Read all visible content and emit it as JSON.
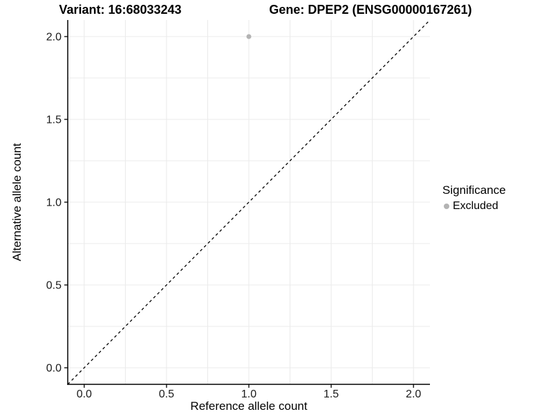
{
  "titles": {
    "variant": "Variant: 16:68033243",
    "gene": "Gene: DPEP2 (ENSG00000167261)"
  },
  "chart_data": {
    "type": "scatter",
    "title_left": "Variant: 16:68033243",
    "title_right": "Gene: DPEP2 (ENSG00000167261)",
    "xlabel": "Reference allele count",
    "ylabel": "Alternative allele count",
    "xlim": [
      -0.1,
      2.1
    ],
    "ylim": [
      -0.1,
      2.1
    ],
    "x_ticks": [
      0.0,
      0.5,
      1.0,
      1.5,
      2.0
    ],
    "y_ticks": [
      0.0,
      0.5,
      1.0,
      1.5,
      2.0
    ],
    "x_tick_labels": [
      "0.0",
      "0.5",
      "1.0",
      "1.5",
      "2.0"
    ],
    "y_tick_labels": [
      "0.0",
      "0.5",
      "1.0",
      "1.5",
      "2.0"
    ],
    "grid_on": true,
    "grid_interval": 0.25,
    "grid_range": [
      0.0,
      2.0
    ],
    "series": [
      {
        "name": "Excluded",
        "points": [
          {
            "x": 1.0,
            "y": 2.0
          }
        ],
        "color": "#b3b3b3",
        "point_radius": 3.5
      }
    ],
    "reference_line": {
      "description": "identity line y = x",
      "from": [
        -0.1,
        -0.1
      ],
      "to": [
        2.1,
        2.1
      ],
      "style": "dashed",
      "color": "#000000"
    },
    "legend": {
      "title": "Significance",
      "position": "right",
      "items": [
        {
          "label": "Excluded",
          "color": "#b3b3b3"
        }
      ]
    },
    "colors": {
      "background": "#ffffff",
      "gridline": "#ebebeb",
      "axis_line": "#000000",
      "tick_label": "#1a1a1a",
      "excluded_point": "#b3b3b3"
    }
  }
}
